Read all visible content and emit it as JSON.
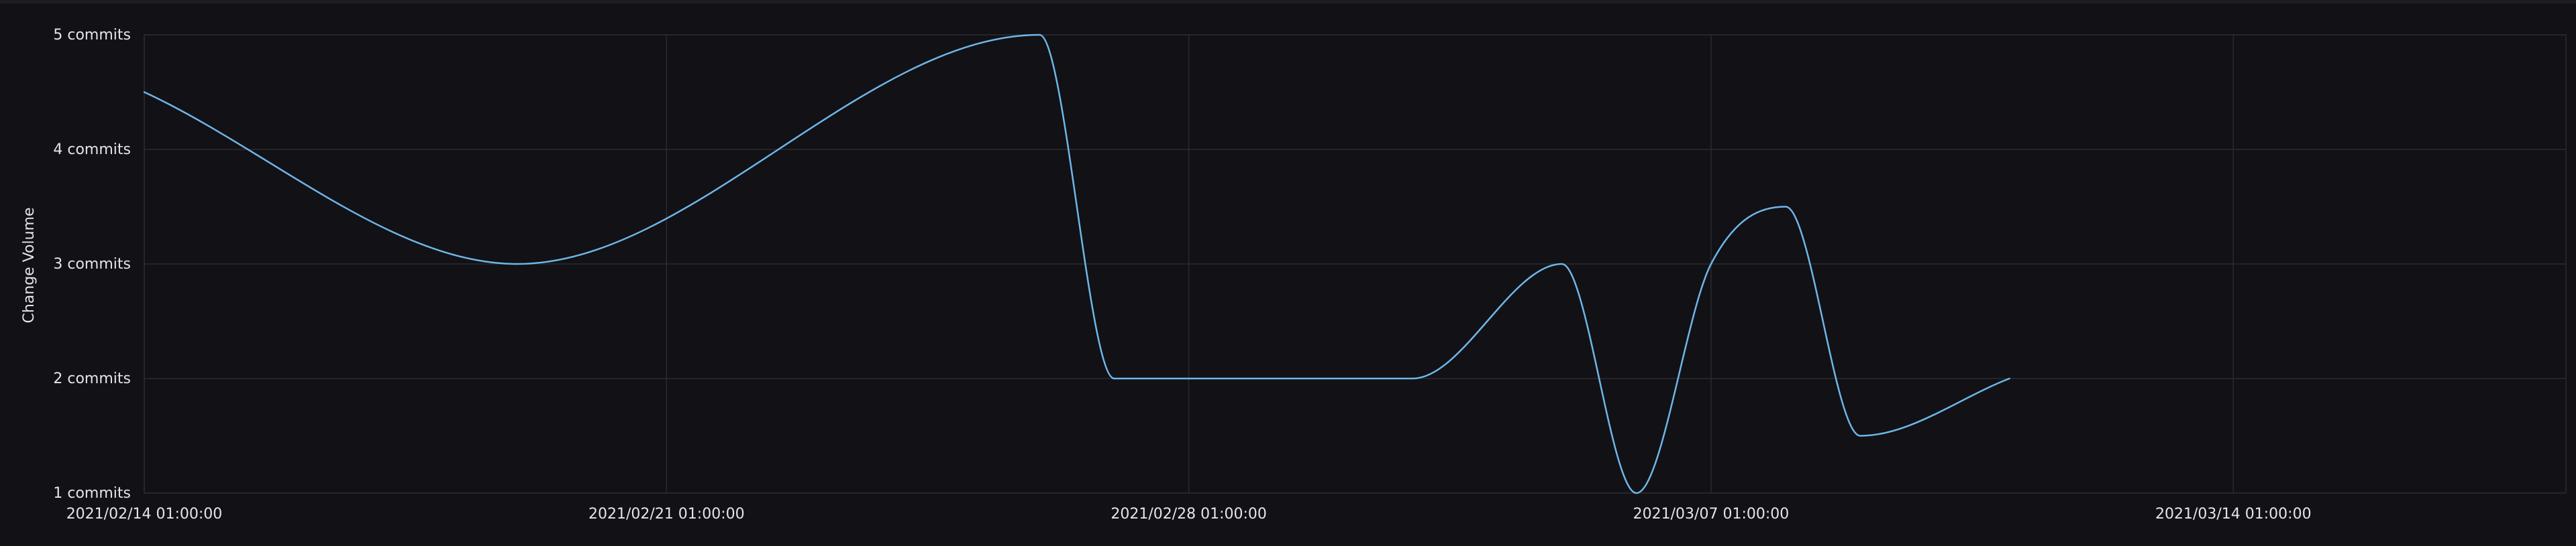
{
  "colors": {
    "background": "#111116",
    "grid": "#2a2a31",
    "line": "#6fb6e8",
    "text": "#e4e4ea"
  },
  "chart_data": {
    "type": "line",
    "title": "",
    "xlabel": "",
    "ylabel": "Change Volume",
    "y_unit": "commits",
    "ylim": [
      1,
      5
    ],
    "xlim": [
      "2021-02-14T01:00:00",
      "2021-03-18T12:00:00"
    ],
    "grid": true,
    "legend": "none",
    "y_ticks": [
      {
        "value": 5,
        "label": "5 commits"
      },
      {
        "value": 4,
        "label": "4 commits"
      },
      {
        "value": 3,
        "label": "3 commits"
      },
      {
        "value": 2,
        "label": "2 commits"
      },
      {
        "value": 1,
        "label": "1 commits"
      }
    ],
    "x_ticks": [
      {
        "value": "2021-02-14T01:00:00",
        "label": "2021/02/14 01:00:00"
      },
      {
        "value": "2021-02-21T01:00:00",
        "label": "2021/02/21 01:00:00"
      },
      {
        "value": "2021-02-28T01:00:00",
        "label": "2021/02/28 01:00:00"
      },
      {
        "value": "2021-03-07T01:00:00",
        "label": "2021/03/07 01:00:00"
      },
      {
        "value": "2021-03-14T01:00:00",
        "label": "2021/03/14 01:00:00"
      }
    ],
    "series": [
      {
        "points": [
          {
            "x": "2021-02-14T01:00:00",
            "y": 4.5
          },
          {
            "x": "2021-02-19T01:00:00",
            "y": 3.0
          },
          {
            "x": "2021-02-26T01:00:00",
            "y": 5.0
          },
          {
            "x": "2021-02-27T01:00:00",
            "y": 2.0
          },
          {
            "x": "2021-03-03T01:00:00",
            "y": 2.0
          },
          {
            "x": "2021-03-05T01:00:00",
            "y": 3.0
          },
          {
            "x": "2021-03-06T01:00:00",
            "y": 1.0
          },
          {
            "x": "2021-03-07T01:00:00",
            "y": 3.0
          },
          {
            "x": "2021-03-08T01:00:00",
            "y": 3.5
          },
          {
            "x": "2021-03-09T01:00:00",
            "y": 1.5
          },
          {
            "x": "2021-03-11T01:00:00",
            "y": 2.0
          }
        ]
      }
    ]
  }
}
